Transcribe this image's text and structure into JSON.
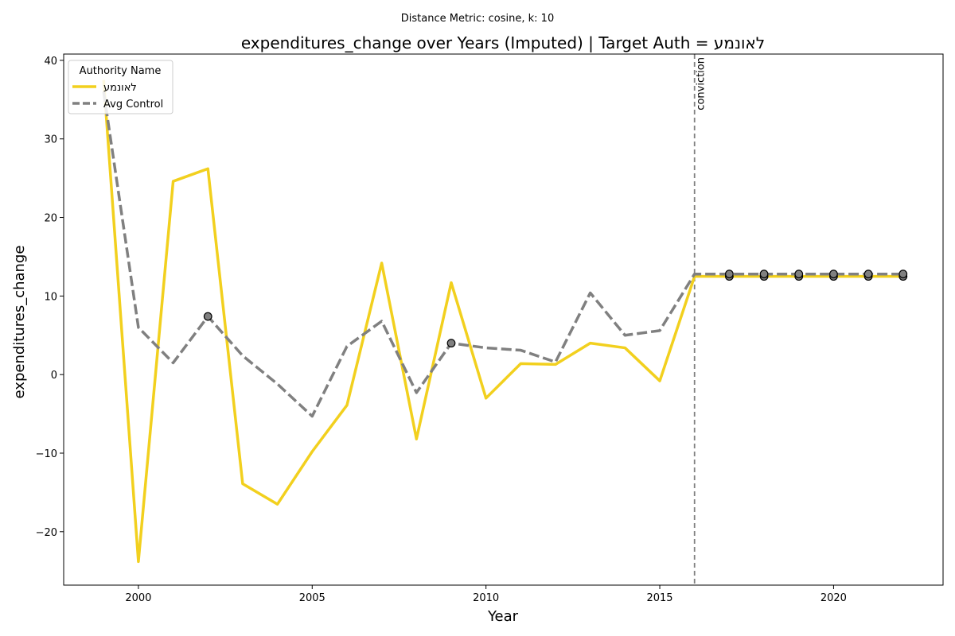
{
  "suptitle": "Distance Metric: cosine, k: 10",
  "chart_data": {
    "type": "line",
    "title": "expenditures_change over Years (Imputed) | Target Auth = לאונמע",
    "xlabel": "Year",
    "ylabel": "expenditures_change",
    "xlim": [
      1997.85,
      2023.15
    ],
    "ylim": [
      -26.8,
      40.8
    ],
    "xticks": [
      2000,
      2005,
      2010,
      2015,
      2020
    ],
    "yticks": [
      -20,
      -10,
      0,
      10,
      20,
      30,
      40
    ],
    "xtick_labels": [
      "2000",
      "2005",
      "2010",
      "2015",
      "2020"
    ],
    "ytick_labels": [
      "−20",
      "−10",
      "0",
      "10",
      "20",
      "30",
      "40"
    ],
    "grid": false,
    "legend": {
      "title": "Authority Name",
      "placement": "top-left",
      "entries": [
        "לאונמע",
        "Avg Control"
      ]
    },
    "x": [
      1999,
      2000,
      2001,
      2002,
      2003,
      2004,
      2005,
      2006,
      2007,
      2008,
      2009,
      2010,
      2011,
      2012,
      2013,
      2014,
      2015,
      2016,
      2017,
      2018,
      2019,
      2020,
      2021,
      2022
    ],
    "series": [
      {
        "name": "לאונמע",
        "color": "#f2d01e",
        "style": "solid",
        "values": [
          37.5,
          -23.8,
          24.6,
          26.2,
          -13.9,
          -16.5,
          -9.8,
          -3.9,
          14.2,
          -8.2,
          11.7,
          -3.0,
          1.4,
          1.3,
          4.0,
          3.4,
          -0.8,
          12.5,
          12.5,
          12.5,
          12.5,
          12.5,
          12.5,
          12.5
        ]
      },
      {
        "name": "Avg Control",
        "color": "#808080",
        "style": "dashed",
        "values": [
          36.0,
          6.0,
          1.5,
          7.4,
          2.4,
          -1.2,
          -5.3,
          3.6,
          6.8,
          -2.3,
          4.0,
          3.4,
          3.1,
          1.6,
          10.4,
          5.0,
          5.6,
          12.8,
          12.8,
          12.8,
          12.8,
          12.8,
          12.8,
          12.8
        ]
      }
    ],
    "imputed_markers": [
      {
        "x": 2002,
        "y": 7.4
      },
      {
        "x": 2009,
        "y": 4.0
      },
      {
        "x": 2017,
        "y": 12.5
      },
      {
        "x": 2017,
        "y": 12.8
      },
      {
        "x": 2018,
        "y": 12.5
      },
      {
        "x": 2018,
        "y": 12.8
      },
      {
        "x": 2019,
        "y": 12.5
      },
      {
        "x": 2019,
        "y": 12.8
      },
      {
        "x": 2020,
        "y": 12.5
      },
      {
        "x": 2020,
        "y": 12.8
      },
      {
        "x": 2021,
        "y": 12.5
      },
      {
        "x": 2021,
        "y": 12.8
      },
      {
        "x": 2022,
        "y": 12.5
      },
      {
        "x": 2022,
        "y": 12.8
      }
    ],
    "vline": {
      "x": 2016,
      "label": "conviction"
    }
  }
}
